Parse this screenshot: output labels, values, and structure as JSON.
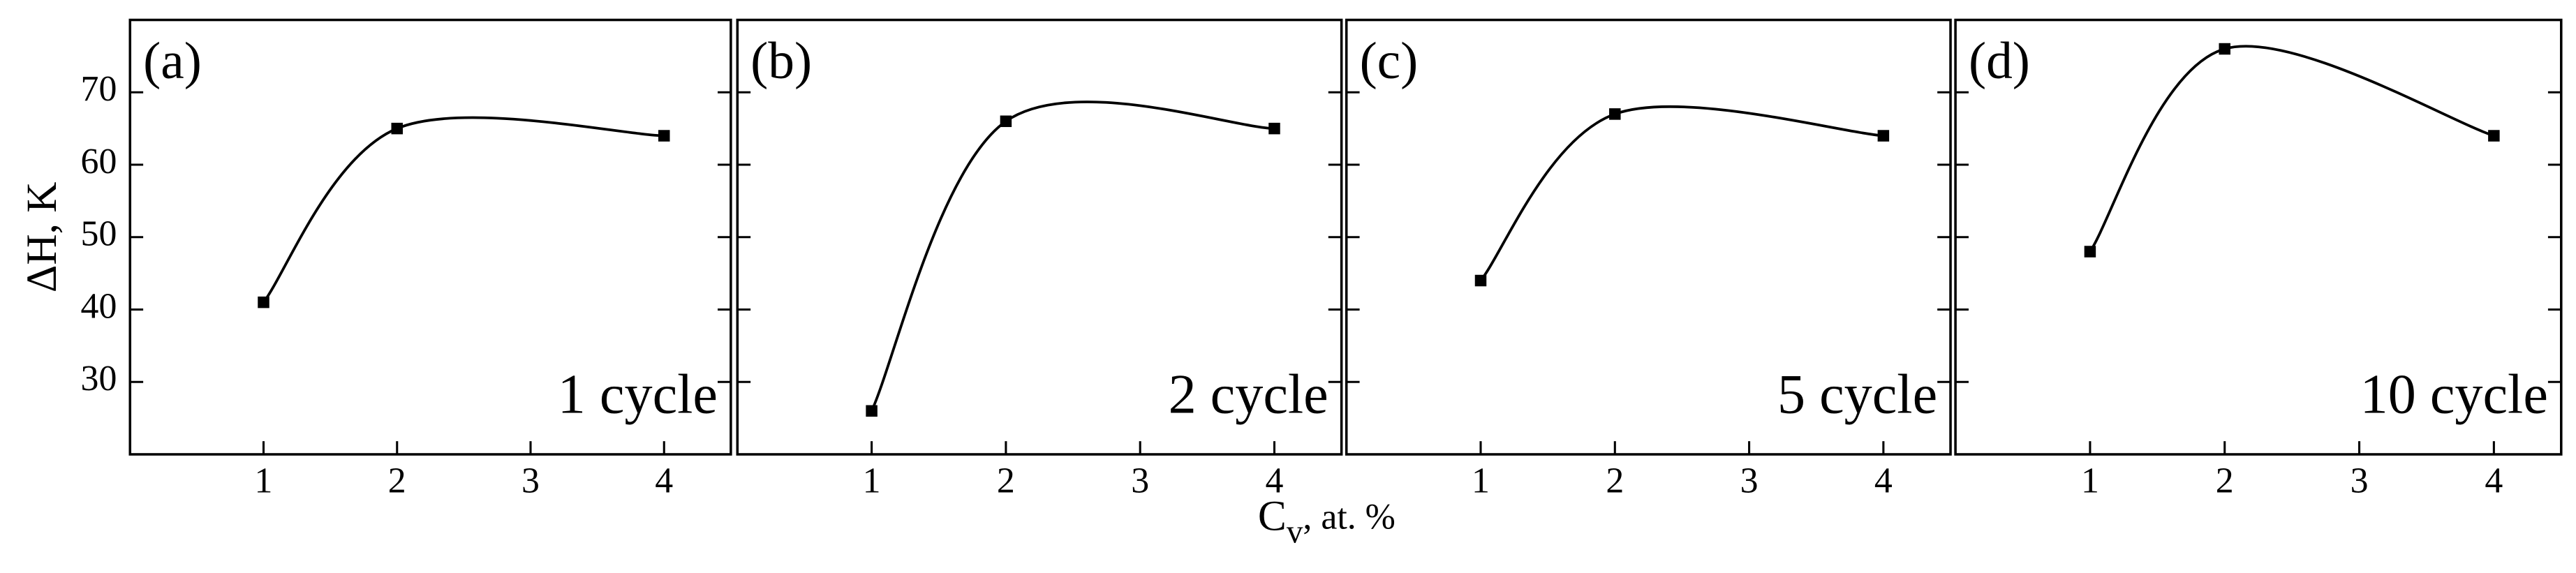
{
  "axes": {
    "y_label": "ΔH, K",
    "x_label": "C",
    "x_label_sub": "v",
    "x_label_rest": ", at. %"
  },
  "chart_data": [
    {
      "type": "line",
      "panel_label": "(a)",
      "annotation": "1 cycle",
      "x": [
        1,
        2,
        4
      ],
      "series": [
        {
          "color": "#000000",
          "values": [
            41,
            65,
            64
          ]
        }
      ],
      "xlim": [
        0,
        4.5
      ],
      "ylim": [
        20,
        80
      ],
      "xticks": [
        1,
        2,
        3,
        4
      ],
      "yticks": [
        30,
        40,
        50,
        60,
        70
      ],
      "grid": false
    },
    {
      "type": "line",
      "panel_label": "(b)",
      "annotation": "2 cycle",
      "x": [
        1,
        2,
        4
      ],
      "series": [
        {
          "color": "#000000",
          "values": [
            26,
            66,
            65
          ]
        }
      ],
      "xlim": [
        0,
        4.5
      ],
      "ylim": [
        20,
        80
      ],
      "xticks": [
        1,
        2,
        3,
        4
      ],
      "yticks": [
        30,
        40,
        50,
        60,
        70
      ],
      "grid": false
    },
    {
      "type": "line",
      "panel_label": "(c)",
      "annotation": "5 cycle",
      "x": [
        1,
        2,
        4
      ],
      "series": [
        {
          "color": "#000000",
          "values": [
            44,
            67,
            64
          ]
        }
      ],
      "xlim": [
        0,
        4.5
      ],
      "ylim": [
        20,
        80
      ],
      "xticks": [
        1,
        2,
        3,
        4
      ],
      "yticks": [
        30,
        40,
        50,
        60,
        70
      ],
      "grid": false
    },
    {
      "type": "line",
      "panel_label": "(d)",
      "annotation": "10 cycle",
      "x": [
        1,
        2,
        4
      ],
      "series": [
        {
          "color": "#000000",
          "values": [
            48,
            76,
            64
          ]
        }
      ],
      "xlim": [
        0,
        4.5
      ],
      "ylim": [
        20,
        80
      ],
      "xticks": [
        1,
        2,
        3,
        4
      ],
      "yticks": [
        30,
        40,
        50,
        60,
        70
      ],
      "grid": false
    }
  ]
}
